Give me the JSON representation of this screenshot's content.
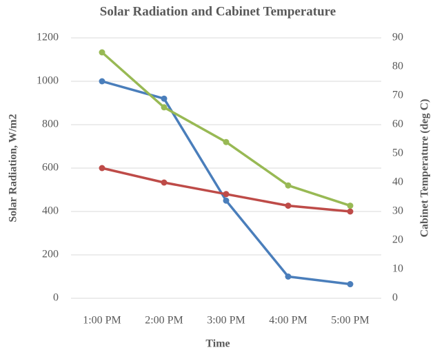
{
  "chart_data": {
    "type": "line",
    "title": "Solar Radiation and Cabinet Temperature",
    "xlabel": "Time",
    "ylabel": "Solar Radiation, W/m2",
    "y2label": "Cabinet Temperature (deg C)",
    "categories": [
      "1:00 PM",
      "2:00 PM",
      "3:00 PM",
      "4:00 PM",
      "5:00 PM"
    ],
    "series": [
      {
        "color": "#4a7ebb",
        "values": [
          1000,
          920,
          450,
          100,
          65
        ]
      },
      {
        "color": "#be4b48",
        "axis": "y2",
        "values": [
          45,
          40,
          36,
          32,
          30
        ]
      },
      {
        "color": "#98b954",
        "axis": "y2",
        "values": [
          85,
          66,
          54,
          39,
          32
        ]
      }
    ],
    "ylim": [
      0,
      1200
    ],
    "yticks": [
      0,
      200,
      400,
      600,
      800,
      1000,
      1200
    ],
    "y2lim": [
      0,
      90
    ],
    "y2ticks": [
      0,
      10,
      20,
      30,
      40,
      50,
      60,
      70,
      80,
      90
    ],
    "grid": true
  }
}
